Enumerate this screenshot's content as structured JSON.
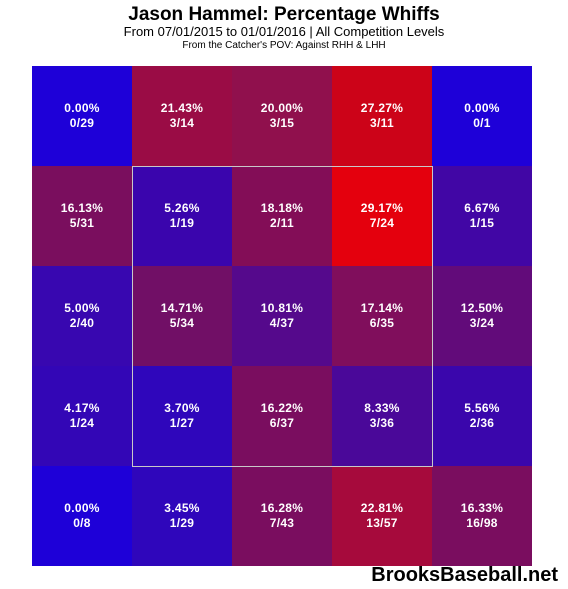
{
  "header": {
    "title": "Jason Hammel: Percentage Whiffs",
    "subtitle": "From 07/01/2015 to 01/01/2016 | All Competition Levels",
    "note": "From the Catcher's POV:  Against RHH & LHH"
  },
  "footer": {
    "brand": "BrooksBaseball.net"
  },
  "chart_data": {
    "type": "heatmap",
    "title": "Jason Hammel: Percentage Whiffs",
    "rows": 5,
    "cols": 5,
    "cells": [
      [
        {
          "pct": "0.00%",
          "count": "0/29",
          "color": "#1e00d8"
        },
        {
          "pct": "21.43%",
          "count": "3/14",
          "color": "#9a0c45"
        },
        {
          "pct": "20.00%",
          "count": "3/15",
          "color": "#90104d"
        },
        {
          "pct": "27.27%",
          "count": "3/11",
          "color": "#cc0318"
        },
        {
          "pct": "0.00%",
          "count": "0/1",
          "color": "#1e00d8"
        }
      ],
      [
        {
          "pct": "16.13%",
          "count": "5/31",
          "color": "#7a0e5e"
        },
        {
          "pct": "5.26%",
          "count": "1/19",
          "color": "#3a05ad"
        },
        {
          "pct": "18.18%",
          "count": "2/11",
          "color": "#830d57"
        },
        {
          "pct": "29.17%",
          "count": "7/24",
          "color": "#e4000d"
        },
        {
          "pct": "6.67%",
          "count": "1/15",
          "color": "#4106a5"
        }
      ],
      [
        {
          "pct": "5.00%",
          "count": "2/40",
          "color": "#3807b0"
        },
        {
          "pct": "14.71%",
          "count": "5/34",
          "color": "#710f66"
        },
        {
          "pct": "10.81%",
          "count": "4/37",
          "color": "#55098c"
        },
        {
          "pct": "17.14%",
          "count": "6/35",
          "color": "#800e5c"
        },
        {
          "pct": "12.50%",
          "count": "3/24",
          "color": "#620b7a"
        }
      ],
      [
        {
          "pct": "4.17%",
          "count": "1/24",
          "color": "#3306b6"
        },
        {
          "pct": "3.70%",
          "count": "1/27",
          "color": "#2f06bb"
        },
        {
          "pct": "16.22%",
          "count": "6/37",
          "color": "#7a0d5f"
        },
        {
          "pct": "8.33%",
          "count": "3/36",
          "color": "#4a0899"
        },
        {
          "pct": "5.56%",
          "count": "2/36",
          "color": "#3a06ac"
        }
      ],
      [
        {
          "pct": "0.00%",
          "count": "0/8",
          "color": "#1e00d8"
        },
        {
          "pct": "3.45%",
          "count": "1/29",
          "color": "#2f06bb"
        },
        {
          "pct": "16.28%",
          "count": "7/43",
          "color": "#7a0d5f"
        },
        {
          "pct": "22.81%",
          "count": "13/57",
          "color": "#a60a3c"
        },
        {
          "pct": "16.33%",
          "count": "16/98",
          "color": "#7a0d5f"
        }
      ]
    ]
  }
}
